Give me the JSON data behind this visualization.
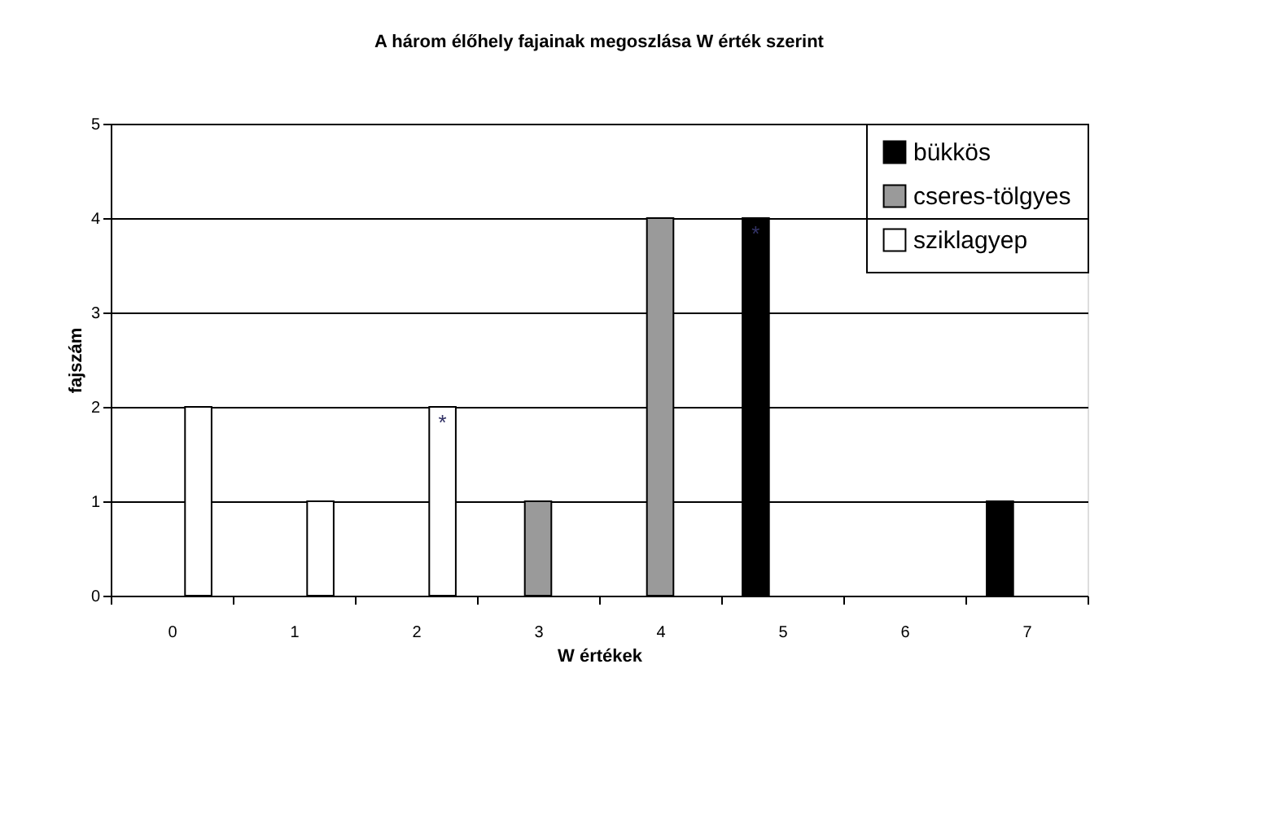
{
  "chart_data": {
    "type": "bar",
    "title": "A három élőhely fajainak megoszlása W érték szerint",
    "xlabel": "W értékek",
    "ylabel": "fajszám",
    "categories": [
      "0",
      "1",
      "2",
      "3",
      "4",
      "5",
      "6",
      "7"
    ],
    "series": [
      {
        "name": "bükkös",
        "color": "#000000",
        "values": [
          null,
          null,
          null,
          null,
          null,
          4,
          null,
          1
        ],
        "value_labels": [
          null,
          null,
          null,
          null,
          null,
          "*",
          null,
          null
        ]
      },
      {
        "name": "cseres-tölgyes",
        "color": "#9a9a9a",
        "values": [
          null,
          null,
          null,
          1,
          4,
          null,
          null,
          null
        ]
      },
      {
        "name": "sziklagyep",
        "color": "#ffffff",
        "values": [
          2,
          1,
          2,
          null,
          null,
          null,
          null,
          null
        ],
        "value_labels": [
          null,
          null,
          "*",
          null,
          null,
          null,
          null,
          null
        ]
      }
    ],
    "ylim": [
      0,
      5
    ],
    "yticks": [
      0,
      1,
      2,
      3,
      4,
      5
    ],
    "grid": "y",
    "legend": "top right"
  }
}
